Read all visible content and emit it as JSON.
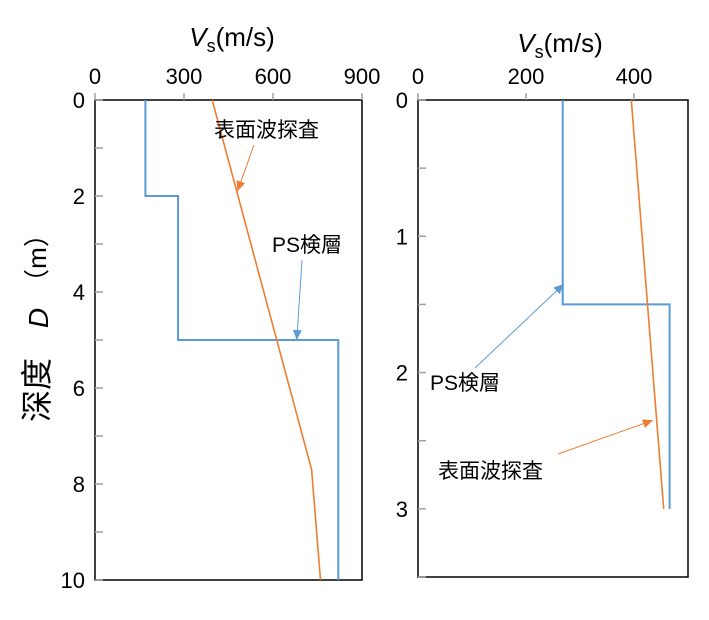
{
  "y_axis_label": {
    "kanji": "深度",
    "symbol": "D",
    "unit": "（m）"
  },
  "colors": {
    "ps": "#5b9bd5",
    "surface": "#ed7d31",
    "axis": "#000000",
    "tickmark": "#a0a0a0"
  },
  "chart_data": [
    {
      "type": "line",
      "title": {
        "symbol": "V",
        "subscript": "s",
        "unit": "(m/s)"
      },
      "xlabel": "Vs(m/s)",
      "ylabel": "深度 D（m）",
      "xlim": [
        0,
        900
      ],
      "ylim": [
        0,
        10
      ],
      "y_inverted": true,
      "x_axis_position": "top",
      "x_ticks": [
        0,
        300,
        600,
        900
      ],
      "y_ticks": [
        0,
        2,
        4,
        6,
        8,
        10
      ],
      "series": [
        {
          "name": "PS検層",
          "color": "#5b9bd5",
          "points": [
            [
              170,
              0
            ],
            [
              170,
              2
            ],
            [
              280,
              2
            ],
            [
              280,
              5
            ],
            [
              820,
              5
            ],
            [
              820,
              10
            ]
          ]
        },
        {
          "name": "表面波探査",
          "color": "#ed7d31",
          "points": [
            [
              395,
              0
            ],
            [
              730,
              7.7
            ],
            [
              760,
              10
            ]
          ]
        }
      ],
      "annotations": [
        {
          "text": "表面波探査",
          "series": "表面波探査",
          "target": [
            480,
            1.9
          ]
        },
        {
          "text": "PS検層",
          "series": "PS検層",
          "target": [
            680,
            5
          ]
        }
      ]
    },
    {
      "type": "line",
      "title": {
        "symbol": "V",
        "subscript": "s",
        "unit": "(m/s)"
      },
      "xlabel": "Vs(m/s)",
      "ylabel": "",
      "xlim": [
        0,
        500
      ],
      "ylim": [
        0,
        3.5
      ],
      "y_inverted": true,
      "x_axis_position": "top",
      "x_ticks": [
        0,
        200,
        400
      ],
      "y_ticks": [
        0,
        1,
        2,
        3
      ],
      "series": [
        {
          "name": "PS検層",
          "color": "#5b9bd5",
          "points": [
            [
              268,
              0
            ],
            [
              268,
              1.5
            ],
            [
              466,
              1.5
            ],
            [
              466,
              3.0
            ]
          ]
        },
        {
          "name": "表面波探査",
          "color": "#ed7d31",
          "points": [
            [
              395,
              0
            ],
            [
              455,
              3.0
            ]
          ]
        }
      ],
      "annotations": [
        {
          "text": "PS検層",
          "series": "PS検層",
          "target": [
            270,
            1.35
          ]
        },
        {
          "text": "表面波探査",
          "series": "表面波探査",
          "target": [
            435,
            2.35
          ]
        }
      ]
    }
  ]
}
